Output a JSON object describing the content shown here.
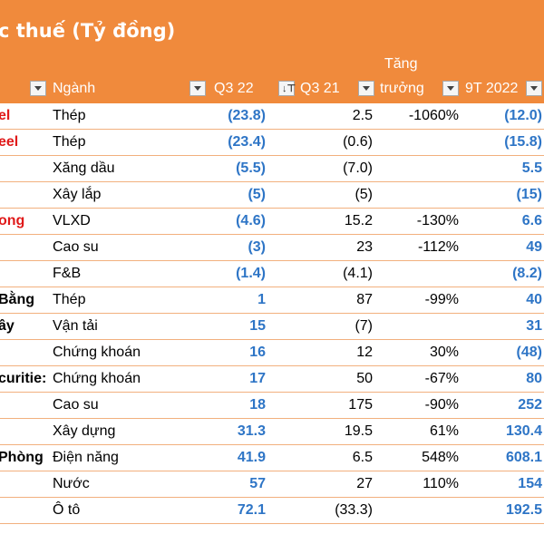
{
  "title": "c thuế (Tỷ đồng)",
  "headers": {
    "sector": "Ngành",
    "q322": "Q3 22",
    "q321": "Q3 21",
    "growth_line1": "Tăng",
    "growth_line2": "trưởng",
    "ytd": "9T 2022"
  },
  "rows": [
    {
      "company": "el",
      "company_color": "red",
      "sector": "Thép",
      "q322": "(23.8)",
      "q321": "2.5",
      "growth": "-1060%",
      "ytd": "(12.0)"
    },
    {
      "company": "eel",
      "company_color": "red",
      "sector": "Thép",
      "q322": "(23.4)",
      "q321": "(0.6)",
      "growth": "",
      "ytd": "(15.8)"
    },
    {
      "company": "",
      "company_color": "",
      "sector": "Xăng dầu",
      "q322": "(5.5)",
      "q321": "(7.0)",
      "growth": "",
      "ytd": "5.5"
    },
    {
      "company": "",
      "company_color": "",
      "sector": "Xây lắp",
      "q322": "(5)",
      "q321": "(5)",
      "growth": "",
      "ytd": "(15)"
    },
    {
      "company": "ong",
      "company_color": "red",
      "sector": "VLXD",
      "q322": "(4.6)",
      "q321": "15.2",
      "growth": "-130%",
      "ytd": "6.6"
    },
    {
      "company": "",
      "company_color": "",
      "sector": "Cao su",
      "q322": "(3)",
      "q321": "23",
      "growth": "-112%",
      "ytd": "49"
    },
    {
      "company": "",
      "company_color": "",
      "sector": "F&B",
      "q322": "(1.4)",
      "q321": "(4.1)",
      "growth": "",
      "ytd": "(8.2)"
    },
    {
      "company": "Bằng",
      "company_color": "",
      "sector": "Thép",
      "q322": "1",
      "q321": "87",
      "growth": "-99%",
      "ytd": "40"
    },
    {
      "company": "ây",
      "company_color": "",
      "sector": "Vận tải",
      "q322": "15",
      "q321": "(7)",
      "growth": "",
      "ytd": "31"
    },
    {
      "company": "",
      "company_color": "",
      "sector": "Chứng khoán",
      "q322": "16",
      "q321": "12",
      "growth": "30%",
      "ytd": "(48)"
    },
    {
      "company": "curitie:",
      "company_color": "",
      "sector": "Chứng khoán",
      "q322": "17",
      "q321": "50",
      "growth": "-67%",
      "ytd": "80"
    },
    {
      "company": "",
      "company_color": "",
      "sector": "Cao su",
      "q322": "18",
      "q321": "175",
      "growth": "-90%",
      "ytd": "252"
    },
    {
      "company": "",
      "company_color": "",
      "sector": "Xây dựng",
      "q322": "31.3",
      "q321": "19.5",
      "growth": "61%",
      "ytd": "130.4"
    },
    {
      "company": "Phòng",
      "company_color": "",
      "sector": "Điện năng",
      "q322": "41.9",
      "q321": "6.5",
      "growth": "548%",
      "ytd": "608.1"
    },
    {
      "company": "",
      "company_color": "",
      "sector": "Nước",
      "q322": "57",
      "q321": "27",
      "growth": "110%",
      "ytd": "154"
    },
    {
      "company": "",
      "company_color": "",
      "sector": "Ô tô",
      "q322": "72.1",
      "q321": "(33.3)",
      "growth": "",
      "ytd": "192.5"
    }
  ]
}
